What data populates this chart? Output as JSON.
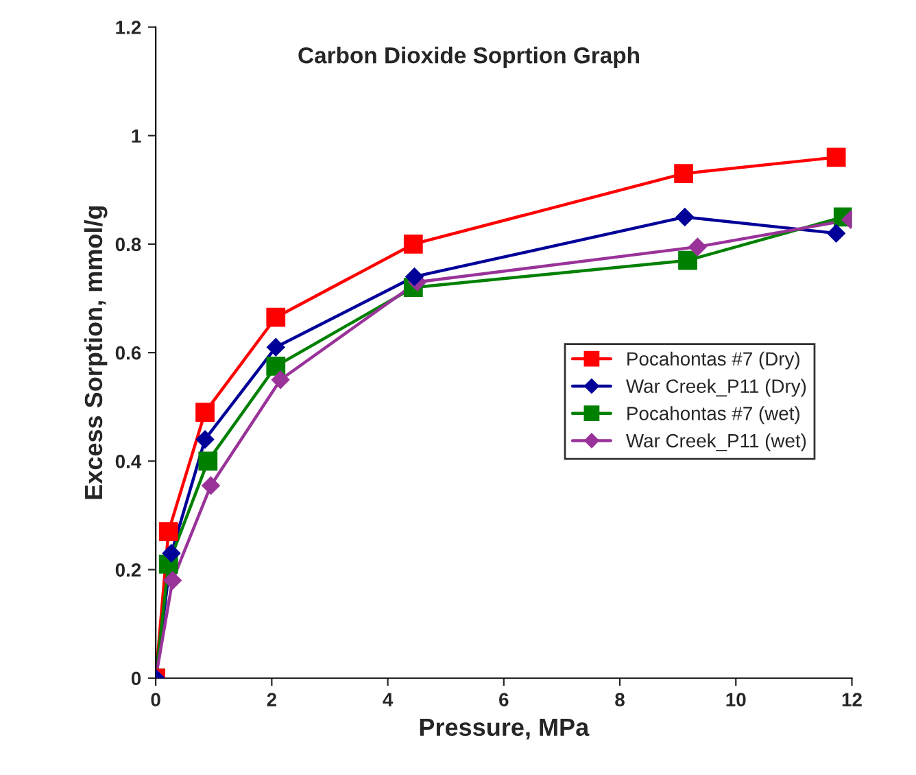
{
  "chart_data": {
    "type": "line",
    "title": "Carbon Dioxide Soprtion Graph",
    "xlabel": "Pressure, MPa",
    "ylabel": "Excess Sorption, mmol/g",
    "xlim": [
      0,
      12
    ],
    "xticks": [
      0,
      2,
      4,
      6,
      8,
      10,
      12
    ],
    "ylim": [
      0,
      1.2
    ],
    "yticks": [
      0,
      0.2,
      0.4,
      0.6,
      0.8,
      1,
      1.2
    ],
    "grid": false,
    "legend": "center right",
    "series": [
      {
        "name": "Pocahontas #7 (Dry)",
        "color": "#ff0000",
        "marker": "square",
        "x": [
          0,
          0.22,
          0.85,
          2.07,
          4.44,
          9.1,
          11.73
        ],
        "values": [
          0,
          0.27,
          0.49,
          0.665,
          0.8,
          0.93,
          0.96
        ]
      },
      {
        "name": "War Creek_P11 (Dry)",
        "color": "#000099",
        "marker": "diamond",
        "x": [
          0,
          0.27,
          0.85,
          2.07,
          4.46,
          9.12,
          11.73
        ],
        "values": [
          0,
          0.23,
          0.44,
          0.61,
          0.74,
          0.85,
          0.82
        ]
      },
      {
        "name": "Pocahontas #7 (wet)",
        "color": "#008000",
        "marker": "square",
        "x": [
          0,
          0.22,
          0.9,
          2.07,
          4.44,
          9.17,
          11.85
        ],
        "values": [
          0,
          0.21,
          0.4,
          0.575,
          0.72,
          0.77,
          0.85
        ]
      },
      {
        "name": "War Creek_P11 (wet)",
        "color": "#993399",
        "marker": "diamond",
        "x": [
          0,
          0.29,
          0.95,
          2.15,
          4.51,
          9.34,
          11.98
        ],
        "values": [
          0,
          0.18,
          0.355,
          0.55,
          0.73,
          0.795,
          0.845
        ]
      }
    ]
  }
}
